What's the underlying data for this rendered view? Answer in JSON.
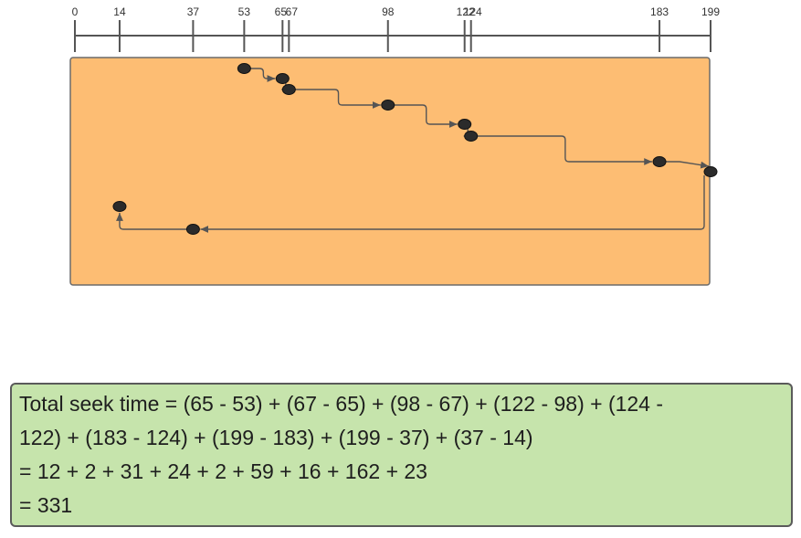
{
  "diagram": {
    "track_range": [
      0,
      199
    ],
    "tick_labels": [
      0,
      14,
      37,
      53,
      65,
      67,
      98,
      122,
      124,
      183,
      199
    ],
    "service_order": [
      53,
      65,
      67,
      98,
      122,
      124,
      183,
      199,
      37,
      14
    ],
    "colors": {
      "panel_fill": "#fdbd73",
      "panel_stroke": "#6b6b6b",
      "axis": "#555555",
      "node": "#2b2b2b",
      "path": "#555555",
      "result_fill": "#c6e4ac"
    }
  },
  "calculation": {
    "lines": [
      "Total seek time = (65 - 53) + (67 - 65) + (98 - 67) + (122 - 98) + (124 -",
      "122) + (183 - 124) + (199 - 183) + (199 - 37) + (37 - 14)",
      "= 12 + 2 + 31 + 24 + 2 + 59 + 16 + 162 + 23",
      "= 331"
    ]
  }
}
